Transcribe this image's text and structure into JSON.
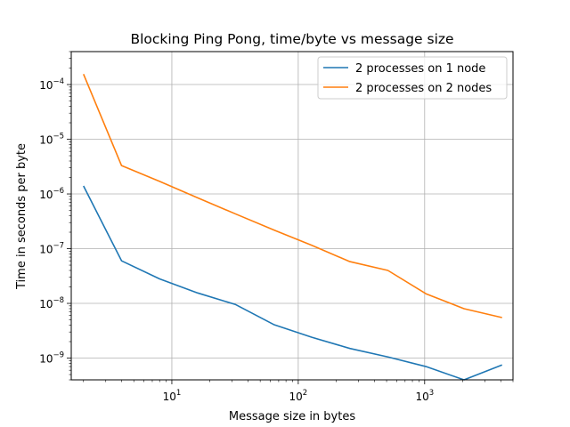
{
  "chart_data": {
    "type": "line",
    "title": "Blocking Ping Pong, time/byte vs message size",
    "xlabel": "Message size in bytes",
    "ylabel": "Time in seconds per byte",
    "xscale": "log",
    "yscale": "log",
    "xlim": [
      1.6,
      5000
    ],
    "ylim": [
      4e-10,
      0.0004
    ],
    "grid": true,
    "legend_position": "top-right",
    "x_ticks": [
      {
        "value": 10,
        "base": "10",
        "exp": "1"
      },
      {
        "value": 100,
        "base": "10",
        "exp": "2"
      },
      {
        "value": 1000,
        "base": "10",
        "exp": "3"
      }
    ],
    "y_ticks": [
      {
        "value": 1e-09,
        "base": "10",
        "exp": "−9"
      },
      {
        "value": 1e-08,
        "base": "10",
        "exp": "−8"
      },
      {
        "value": 1e-07,
        "base": "10",
        "exp": "−7"
      },
      {
        "value": 1e-06,
        "base": "10",
        "exp": "−6"
      },
      {
        "value": 1e-05,
        "base": "10",
        "exp": "−5"
      },
      {
        "value": 0.0001,
        "base": "10",
        "exp": "−4"
      }
    ],
    "series": [
      {
        "name": "2 processes on 1 node",
        "color": "#1f77b4",
        "x": [
          2,
          4,
          8,
          16,
          32,
          64,
          128,
          256,
          512,
          1024,
          2048,
          4096
        ],
        "y": [
          1.4e-06,
          6e-08,
          2.8e-08,
          1.55e-08,
          9.5e-09,
          4.1e-09,
          2.4e-09,
          1.5e-09,
          1.05e-09,
          7e-10,
          4e-10,
          7.5e-10
        ]
      },
      {
        "name": "2 processes on 2 nodes",
        "color": "#ff7f0e",
        "x": [
          2,
          4,
          8,
          16,
          32,
          64,
          128,
          256,
          512,
          1024,
          2048,
          4096
        ],
        "y": [
          0.000155,
          3.3e-06,
          1.7e-06,
          8.5e-07,
          4.3e-07,
          2.2e-07,
          1.15e-07,
          5.8e-08,
          4e-08,
          1.5e-08,
          8e-09,
          5.5e-09
        ]
      }
    ]
  }
}
